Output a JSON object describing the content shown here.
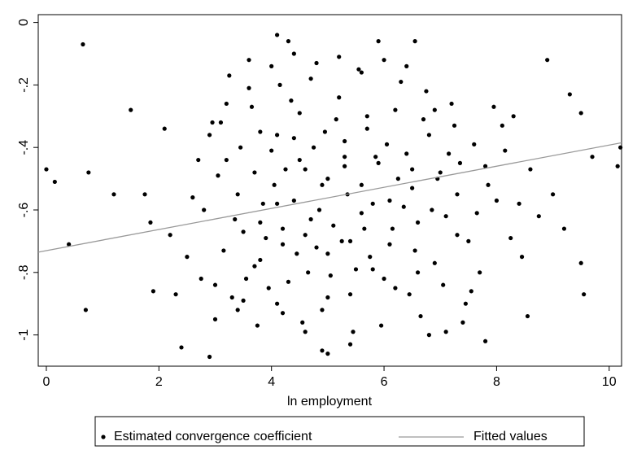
{
  "chart_data": {
    "type": "scatter",
    "xlabel": "ln employment",
    "xlim": [
      -0.144,
      10.22
    ],
    "ylim": [
      -1.1,
      0.025
    ],
    "xticks": [
      0,
      2,
      4,
      6,
      8,
      10
    ],
    "yticks": [
      0,
      {
        "value": -0.2,
        "label": "-.2"
      },
      {
        "value": -0.4,
        "label": "-.4"
      },
      {
        "value": -0.6,
        "label": "-.6"
      },
      {
        "value": -0.8,
        "label": "-.8"
      },
      -1
    ],
    "legend": "bottom",
    "series": [
      {
        "name": "Estimated convergence coefficient",
        "color": "#000000",
        "kind": "points",
        "x": [
          3.1,
          3.4,
          3.7,
          4.0,
          4.2,
          4.5,
          4.8,
          5.0,
          5.3,
          5.6,
          5.9,
          6.2,
          6.5,
          6.8,
          7.1,
          3.3,
          3.6,
          3.9,
          4.3,
          4.6,
          4.9,
          5.2,
          5.5,
          5.8,
          6.1,
          6.4,
          6.7,
          7.0,
          7.3,
          7.6,
          2.8,
          3.0,
          3.2,
          3.5,
          3.8,
          4.1,
          4.4,
          4.7,
          5.1,
          5.4,
          5.7,
          6.0,
          6.3,
          6.6,
          6.9,
          7.2,
          7.5,
          7.8,
          8.1,
          8.4,
          3.15,
          3.45,
          3.75,
          4.05,
          4.35,
          4.65,
          4.95,
          5.25,
          5.55,
          5.85,
          6.15,
          6.45,
          6.75,
          7.05,
          7.35,
          7.65,
          7.95,
          8.25,
          2.6,
          2.75,
          3.05,
          3.35,
          3.65,
          3.95,
          4.25,
          4.55,
          4.85,
          5.15,
          5.45,
          5.75,
          6.05,
          6.35,
          6.65,
          6.95,
          7.25,
          7.55,
          7.85,
          8.15,
          8.45,
          8.75,
          3.25,
          3.55,
          3.85,
          4.15,
          4.45,
          4.75,
          5.05,
          5.35,
          5.65,
          5.95,
          6.25,
          6.55,
          6.85,
          7.15,
          7.45,
          9.0,
          9.2,
          8.6,
          2.5,
          2.3,
          0,
          0.15,
          0.4,
          0.65,
          0.7,
          0.75,
          1.2,
          1.5,
          1.75,
          1.85,
          1.9,
          2.1,
          2.2,
          2.4,
          2.9,
          8.9,
          9.5,
          9.5,
          9.55,
          10.2,
          10.15,
          8.55,
          7.8,
          4.1,
          4.3,
          5.9,
          6.55,
          4.9,
          5.0,
          5.4,
          3.6,
          4.0,
          4.4,
          4.8,
          5.2,
          5.6,
          6.0,
          6.4,
          4.2,
          4.6,
          3.0,
          3.4,
          3.8,
          4.2,
          4.6,
          5.0,
          5.4,
          5.8,
          6.2,
          6.6,
          3.7,
          4.1,
          4.5,
          4.9,
          5.3,
          5.7,
          6.1,
          6.5,
          6.9,
          7.3,
          2.9,
          3.2,
          3.5,
          3.8,
          4.1,
          4.4,
          4.7,
          5.0,
          5.3,
          5.6,
          7.7,
          8.0,
          8.3,
          7.4,
          7.1,
          6.8,
          2.7,
          2.95,
          9.3,
          9.7
        ],
        "y": [
          -0.32,
          -0.55,
          -0.78,
          -0.41,
          -0.66,
          -0.29,
          -0.72,
          -0.5,
          -0.38,
          -0.61,
          -0.45,
          -0.28,
          -0.53,
          -0.36,
          -0.62,
          -0.88,
          -0.21,
          -0.69,
          -0.83,
          -0.47,
          -0.92,
          -0.24,
          -0.79,
          -0.58,
          -0.71,
          -0.42,
          -0.31,
          -0.48,
          -0.55,
          -0.39,
          -0.6,
          -0.95,
          -0.44,
          -0.67,
          -0.35,
          -0.9,
          -0.57,
          -0.18,
          -0.65,
          -0.87,
          -0.3,
          -0.82,
          -0.19,
          -0.64,
          -0.77,
          -0.26,
          -0.7,
          -0.46,
          -0.33,
          -0.58,
          -0.73,
          -0.4,
          -0.97,
          -0.52,
          -0.25,
          -0.8,
          -0.35,
          -0.7,
          -0.15,
          -0.43,
          -0.66,
          -0.87,
          -0.22,
          -0.84,
          -0.45,
          -0.61,
          -0.27,
          -0.69,
          -0.56,
          -0.82,
          -0.49,
          -0.63,
          -0.27,
          -0.85,
          -0.47,
          -0.96,
          -0.6,
          -0.31,
          -0.99,
          -0.75,
          -0.39,
          -0.59,
          -0.94,
          -0.5,
          -0.33,
          -0.86,
          -0.52,
          -0.41,
          -0.75,
          -0.62,
          -0.17,
          -0.82,
          -0.58,
          -0.2,
          -0.74,
          -0.4,
          -0.81,
          -0.55,
          -0.66,
          -0.97,
          -0.5,
          -0.73,
          -0.6,
          -0.42,
          -0.9,
          -0.55,
          -0.66,
          -0.47,
          -0.75,
          -0.87,
          -0.47,
          -0.51,
          -0.71,
          -0.07,
          -0.92,
          -0.48,
          -0.55,
          -0.28,
          -0.55,
          -0.64,
          -0.86,
          -0.34,
          -0.68,
          -1.04,
          -1.07,
          -0.12,
          -0.29,
          -0.77,
          -0.87,
          -0.4,
          -0.46,
          -0.94,
          -1.02,
          -0.04,
          -0.06,
          -0.06,
          -0.06,
          -1.05,
          -1.06,
          -1.03,
          -0.12,
          -0.14,
          -0.1,
          -0.13,
          -0.11,
          -0.16,
          -0.12,
          -0.14,
          -0.93,
          -0.99,
          -0.84,
          -0.92,
          -0.76,
          -0.71,
          -0.68,
          -0.74,
          -0.7,
          -0.79,
          -0.85,
          -0.8,
          -0.48,
          -0.36,
          -0.44,
          -0.52,
          -0.46,
          -0.34,
          -0.57,
          -0.47,
          -0.28,
          -0.68,
          -0.36,
          -0.26,
          -0.89,
          -0.64,
          -0.58,
          -0.37,
          -0.63,
          -0.88,
          -0.43,
          -0.52,
          -0.8,
          -0.57,
          -0.3,
          -0.96,
          -0.99,
          -1.0,
          -0.44,
          -0.32,
          -0.23,
          -0.43
        ]
      },
      {
        "name": "Fitted values",
        "color": "#999999",
        "kind": "line",
        "x": [
          -0.144,
          10.22
        ],
        "y": [
          -0.735,
          -0.385
        ]
      }
    ]
  }
}
